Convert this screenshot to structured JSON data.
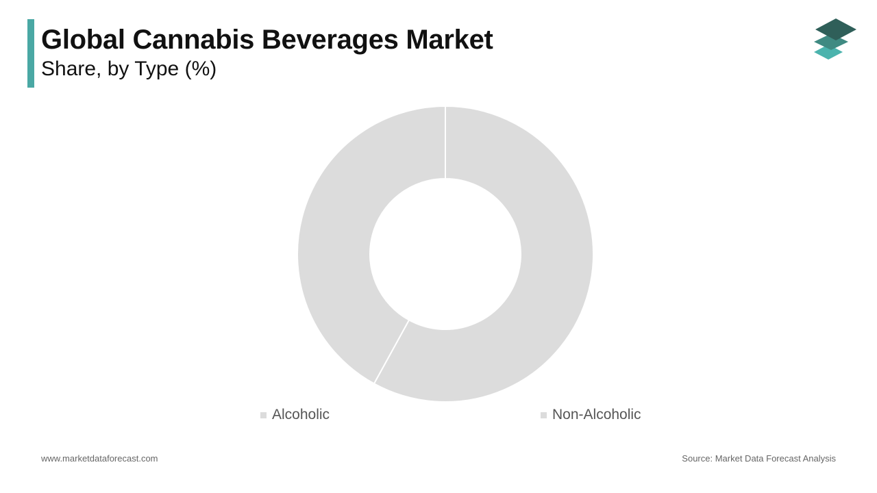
{
  "header": {
    "title": "Global Cannabis Beverages Market",
    "subtitle": "Share, by Type (%)",
    "accent_color": "#4aa8a4"
  },
  "logo": {
    "icon": "stacked-layers-icon",
    "colors": [
      "#2f5f59",
      "#3f8a82",
      "#4bb3ad"
    ]
  },
  "chart_data": {
    "type": "pie",
    "donut": true,
    "categories": [
      "Alcoholic",
      "Non-Alcoholic"
    ],
    "values": [
      42,
      58
    ],
    "colors": [
      "#dcdcdc",
      "#dcdcdc"
    ],
    "legend_position": "bottom",
    "title": "",
    "xlabel": "",
    "ylabel": ""
  },
  "legend": {
    "items": [
      {
        "label": "Alcoholic",
        "color": "#dcdcdc"
      },
      {
        "label": "Non-Alcoholic",
        "color": "#dcdcdc"
      }
    ]
  },
  "footer": {
    "website": "www.marketdataforecast.com",
    "source": "Source: Market Data Forecast Analysis"
  }
}
